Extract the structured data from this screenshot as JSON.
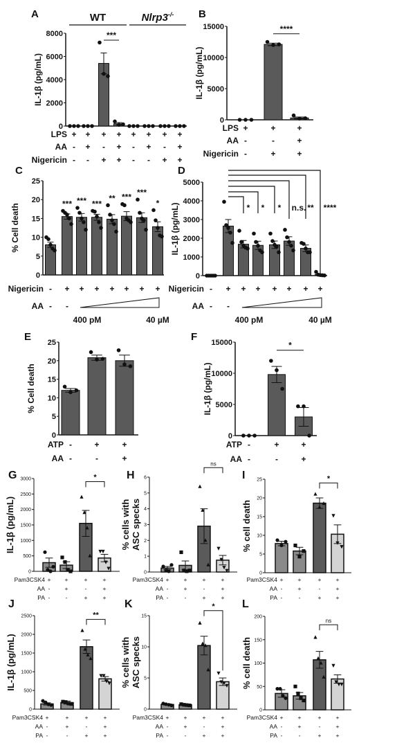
{
  "chart_data": [
    {
      "id": "A",
      "type": "bar",
      "letter": "A",
      "ylabel": "IL-1β (pg/mL)",
      "ylim": [
        0,
        8000
      ],
      "yticks": [
        0,
        2000,
        4000,
        6000,
        8000
      ],
      "groups": [
        {
          "label": "WT",
          "italic": false,
          "sup": ""
        },
        {
          "label": "Nlrp3",
          "italic": true,
          "sup": "-/-"
        }
      ],
      "rows": [
        {
          "label": "LPS",
          "values": [
            "+",
            "+",
            "+",
            "+",
            "+",
            "+",
            "+",
            "+"
          ]
        },
        {
          "label": "AA",
          "values": [
            "-",
            "+",
            "-",
            "+",
            "-",
            "+",
            "-",
            "+"
          ]
        },
        {
          "label": "Nigericin",
          "values": [
            "-",
            "-",
            "+",
            "+",
            "-",
            "-",
            "+",
            "+"
          ]
        }
      ],
      "values": [
        0,
        0,
        5400,
        200,
        0,
        0,
        0,
        0
      ],
      "errors": [
        0,
        0,
        900,
        100,
        0,
        0,
        0,
        0
      ],
      "points": [
        [
          0,
          0,
          0
        ],
        [
          0,
          0,
          0
        ],
        [
          7200,
          4500,
          4300
        ],
        [
          400,
          100,
          150
        ],
        [
          0,
          0,
          0
        ],
        [
          0,
          0,
          0
        ],
        [
          0,
          0,
          0
        ],
        [
          0,
          0,
          0
        ]
      ],
      "comparisons": [
        {
          "from": 2,
          "to": 3,
          "label": "***",
          "at": 7400
        }
      ]
    },
    {
      "id": "B",
      "type": "bar",
      "letter": "B",
      "ylabel": "IL-1β (pg/mL)",
      "ylim": [
        0,
        15000
      ],
      "yticks": [
        0,
        5000,
        10000,
        15000
      ],
      "rows": [
        {
          "label": "LPS",
          "values": [
            "+",
            "+",
            "+"
          ]
        },
        {
          "label": "AA",
          "values": [
            "-",
            "-",
            "+"
          ]
        },
        {
          "label": "Nigericin",
          "values": [
            "-",
            "+",
            "+"
          ]
        }
      ],
      "values": [
        0,
        12100,
        300
      ],
      "errors": [
        0,
        200,
        150
      ],
      "points": [
        [
          0,
          0,
          0
        ],
        [
          12500,
          12000,
          12100
        ],
        [
          700,
          200,
          250
        ]
      ],
      "comparisons": [
        {
          "from": 1,
          "to": 2,
          "label": "****",
          "at": 13800
        }
      ]
    },
    {
      "id": "C",
      "type": "bar",
      "letter": "C",
      "ylabel": "% Cell death",
      "ylim": [
        0,
        25
      ],
      "yticks": [
        0,
        5,
        10,
        15,
        20,
        25
      ],
      "rows": [
        {
          "label": "Nigericin",
          "values": [
            "-",
            "+",
            "+",
            "+",
            "+",
            "+",
            "+",
            "+"
          ]
        },
        {
          "label": "AA",
          "values": [
            "-",
            "-",
            "",
            "",
            "",
            "",
            "",
            ""
          ]
        }
      ],
      "ramp": {
        "low": "400 pM",
        "high": "40 µM"
      },
      "values": [
        8,
        15.5,
        15.3,
        15.3,
        14.8,
        15.6,
        15.2,
        12.8
      ],
      "errors": [
        0.7,
        0.7,
        1.0,
        0.8,
        1.2,
        1.2,
        1.3,
        1.3
      ],
      "points": [
        [
          10,
          9.5,
          8,
          7,
          6.5
        ],
        [
          17,
          16.5,
          16,
          15,
          13.5
        ],
        [
          17.8,
          16.5,
          15,
          14,
          12
        ],
        [
          17,
          16.8,
          15.5,
          14,
          12.5
        ],
        [
          18.5,
          16,
          14.5,
          13.5,
          11.5
        ],
        [
          18.8,
          18.5,
          15,
          14.5,
          14
        ],
        [
          20,
          16.5,
          15,
          14.5,
          12
        ],
        [
          17.2,
          14.5,
          12.5,
          10.5,
          10.2
        ]
      ],
      "bar_sig": [
        "",
        "***",
        "***",
        "***",
        "**",
        "***",
        "***",
        "*"
      ]
    },
    {
      "id": "D",
      "type": "bar",
      "letter": "D",
      "ylabel": "IL-1β (pg/mL)",
      "ylim": [
        0,
        5000
      ],
      "yticks": [
        0,
        1000,
        2000,
        3000,
        4000,
        5000
      ],
      "rows": [
        {
          "label": "Nigericin",
          "values": [
            "-",
            "+",
            "+",
            "+",
            "+",
            "+",
            "+",
            "+"
          ]
        },
        {
          "label": "AA",
          "values": [
            "-",
            "-",
            "",
            "",
            "",
            "",
            "",
            ""
          ]
        }
      ],
      "ramp": {
        "low": "400 pM",
        "high": "40 µM"
      },
      "values": [
        0,
        2650,
        1680,
        1620,
        1650,
        1850,
        1460,
        60
      ],
      "errors": [
        0,
        350,
        200,
        220,
        200,
        230,
        180,
        30
      ],
      "points": [
        [
          0,
          0,
          0,
          0,
          0
        ],
        [
          3950,
          2700,
          2550,
          2300,
          1750
        ],
        [
          2400,
          1800,
          1600,
          1500,
          1450
        ],
        [
          2250,
          1800,
          1600,
          1350,
          1250
        ],
        [
          2250,
          1850,
          1650,
          1550,
          1250
        ],
        [
          2450,
          2050,
          1800,
          1600,
          1350
        ],
        [
          1750,
          1700,
          1450,
          1250,
          1250
        ],
        [
          200,
          50,
          30,
          20,
          10
        ]
      ],
      "comparisons": [
        {
          "from": 1,
          "to": 2,
          "label": "*"
        },
        {
          "from": 1,
          "to": 3,
          "label": "*"
        },
        {
          "from": 1,
          "to": 4,
          "label": "*"
        },
        {
          "from": 1,
          "to": 5,
          "label": "n.s."
        },
        {
          "from": 1,
          "to": 6,
          "label": "**"
        },
        {
          "from": 1,
          "to": 7,
          "label": "****"
        }
      ]
    },
    {
      "id": "E",
      "type": "bar",
      "letter": "E",
      "ylabel": "% Cell death",
      "ylim": [
        0,
        25
      ],
      "yticks": [
        0,
        5,
        10,
        15,
        20,
        25
      ],
      "rows": [
        {
          "label": "ATP",
          "values": [
            "-",
            "+",
            "+"
          ]
        },
        {
          "label": "AA",
          "values": [
            "-",
            "-",
            "+"
          ]
        }
      ],
      "values": [
        12,
        20.8,
        20
      ],
      "errors": [
        0.5,
        0.7,
        1.5
      ],
      "points": [
        [
          13,
          11.5,
          12
        ],
        [
          22.3,
          20.3,
          20.5
        ],
        [
          22.8,
          19,
          18.5
        ]
      ]
    },
    {
      "id": "F",
      "type": "bar",
      "letter": "F",
      "ylabel": "IL-1β (pg/mL)",
      "ylim": [
        0,
        15000
      ],
      "yticks": [
        0,
        5000,
        10000,
        15000
      ],
      "rows": [
        {
          "label": "ATP",
          "values": [
            "-",
            "+",
            "+"
          ]
        },
        {
          "label": "AA",
          "values": [
            "-",
            "-",
            "+"
          ]
        }
      ],
      "values": [
        0,
        9800,
        3000
      ],
      "errors": [
        0,
        1300,
        1500
      ],
      "points": [
        [
          0,
          0,
          0
        ],
        [
          12000,
          10500,
          7500
        ],
        [
          4700,
          4700,
          0
        ]
      ],
      "comparisons": [
        {
          "from": 1,
          "to": 2,
          "label": "*",
          "at": 13700
        }
      ]
    },
    {
      "id": "G",
      "type": "bar",
      "letter": "G",
      "ylabel": "IL-1β (pg/mL)",
      "ylim": [
        0,
        3000
      ],
      "yticks": [
        0,
        500,
        1000,
        1500,
        2000,
        2500,
        3000
      ],
      "rows": [
        {
          "label": "Pam3CSK4",
          "values": [
            "+",
            "+",
            "+",
            "+"
          ]
        },
        {
          "label": "AA",
          "values": [
            "-",
            "+",
            "-",
            "+"
          ]
        },
        {
          "label": "PA",
          "values": [
            "-",
            "-",
            "+",
            "+"
          ]
        }
      ],
      "values": [
        280,
        200,
        1550,
        430
      ],
      "errors": [
        150,
        110,
        420,
        120
      ],
      "points": [
        [
          620,
          50,
          0,
          150
        ],
        [
          450,
          300,
          50,
          0
        ],
        [
          2400,
          1900,
          1400,
          500
        ],
        [
          650,
          650,
          300,
          100
        ]
      ],
      "comparisons": [
        {
          "from": 2,
          "to": 3,
          "label": "*",
          "at": 2900,
          "bracket": true
        }
      ]
    },
    {
      "id": "H",
      "type": "bar",
      "letter": "H",
      "ylabel": "% cells with",
      "ylabel2": "ASC specks",
      "ylim": [
        0,
        6
      ],
      "yticks": [
        0,
        1,
        2,
        3,
        4,
        5,
        6
      ],
      "rows": [
        {
          "label": "Pam3CSK4",
          "values": [
            "+",
            "+",
            "+",
            "+"
          ]
        },
        {
          "label": "AA",
          "values": [
            "-",
            "+",
            "-",
            "+"
          ]
        },
        {
          "label": "PA",
          "values": [
            "-",
            "-",
            "+",
            "+"
          ]
        }
      ],
      "values": [
        0.25,
        0.42,
        2.9,
        0.75
      ],
      "errors": [
        0.1,
        0.28,
        1.1,
        0.3
      ],
      "points": [
        [
          0.35,
          0.1,
          0.05,
          0.45
        ],
        [
          1.25,
          0.1,
          0.05,
          0.1
        ],
        [
          5.4,
          3.9,
          2.0,
          0.45
        ],
        [
          1.5,
          0.8,
          0.3,
          0.1
        ]
      ],
      "comparisons": [
        {
          "from": 2,
          "to": 3,
          "label": "ns",
          "at": 6.6,
          "bracket": true
        }
      ]
    },
    {
      "id": "I",
      "type": "bar",
      "letter": "I",
      "ylabel": "% cell death",
      "ylim": [
        0,
        25
      ],
      "yticks": [
        0,
        5,
        10,
        15,
        20,
        25
      ],
      "rows": [
        {
          "label": "Pam3CSK4",
          "values": [
            "+",
            "+",
            "+",
            "+"
          ]
        },
        {
          "label": "AA",
          "values": [
            "-",
            "+",
            "-",
            "+"
          ]
        },
        {
          "label": "PA",
          "values": [
            "-",
            "-",
            "+",
            "+"
          ]
        }
      ],
      "values": [
        7.8,
        5.8,
        18.6,
        10.3
      ],
      "errors": [
        0.6,
        1.0,
        1.4,
        2.5
      ],
      "points": [
        [
          8.7,
          7.3,
          8.3
        ],
        [
          7.3,
          4.3,
          5.8
        ],
        [
          21,
          17.5,
          18.5
        ],
        [
          15.3,
          8,
          7
        ]
      ],
      "comparisons": [
        {
          "from": 2,
          "to": 3,
          "label": "*",
          "at": 24,
          "bracket": true
        }
      ]
    },
    {
      "id": "J",
      "type": "bar",
      "letter": "J",
      "ylabel": "IL-1β (pg/mL)",
      "ylim": [
        0,
        2500
      ],
      "yticks": [
        0,
        500,
        1000,
        1500,
        2000,
        2500
      ],
      "rows": [
        {
          "label": "Pam3CSK4",
          "values": [
            "+",
            "+",
            "+",
            "+"
          ]
        },
        {
          "label": "AA",
          "values": [
            "-",
            "+",
            "-",
            "+"
          ]
        },
        {
          "label": "PA",
          "values": [
            "-",
            "-",
            "+",
            "+"
          ]
        }
      ],
      "values": [
        140,
        175,
        1670,
        810
      ],
      "errors": [
        30,
        40,
        180,
        60
      ],
      "points": [
        [
          220,
          180,
          130,
          110
        ],
        [
          200,
          190,
          150,
          140
        ],
        [
          2100,
          1600,
          1450,
          1350
        ],
        [
          900,
          900,
          750,
          700
        ]
      ],
      "comparisons": [
        {
          "from": 2,
          "to": 3,
          "label": "**",
          "at": 2400,
          "bracket": true
        }
      ]
    },
    {
      "id": "K",
      "type": "bar",
      "letter": "K",
      "ylabel": "% cells with",
      "ylabel2": "ASC specks",
      "ylim": [
        0,
        15
      ],
      "yticks": [
        0,
        5,
        10,
        15
      ],
      "rows": [
        {
          "label": "Pam3CSK4",
          "values": [
            "+",
            "+",
            "+",
            "+"
          ]
        },
        {
          "label": "AA",
          "values": [
            "-",
            "+",
            "-",
            "+"
          ]
        },
        {
          "label": "PA",
          "values": [
            "-",
            "-",
            "+",
            "+"
          ]
        }
      ],
      "values": [
        0.75,
        0.7,
        10.2,
        4.4
      ],
      "errors": [
        0.1,
        0.1,
        1.5,
        0.6
      ],
      "points": [
        [
          0.9,
          0.8,
          0.7,
          0.6
        ],
        [
          0.8,
          0.7,
          0.65,
          0.6
        ],
        [
          13.8,
          10.5,
          10.2,
          6.3
        ],
        [
          5.8,
          4.4,
          4.2,
          3.8
        ]
      ],
      "comparisons": [
        {
          "from": 2,
          "to": 3,
          "label": "*",
          "at": 15.8,
          "bracket": true
        }
      ]
    },
    {
      "id": "L",
      "type": "bar",
      "letter": "L",
      "ylabel": "% cell death",
      "ylim": [
        0,
        200
      ],
      "yticks": [
        0,
        50,
        100,
        150,
        200
      ],
      "rows": [
        {
          "label": "Pam3CSK4",
          "values": [
            "+",
            "+",
            "+",
            "+"
          ]
        },
        {
          "label": "AA",
          "values": [
            "-",
            "+",
            "-",
            "+"
          ]
        },
        {
          "label": "PA",
          "values": [
            "-",
            "-",
            "+",
            "+"
          ]
        }
      ],
      "values": [
        35,
        30,
        107,
        66
      ],
      "errors": [
        8,
        7,
        18,
        9
      ],
      "points": [
        [
          45,
          45,
          30,
          25
        ],
        [
          50,
          35,
          25,
          20
        ],
        [
          155,
          110,
          100,
          70
        ],
        [
          95,
          60,
          55,
          55
        ]
      ],
      "comparisons": [
        {
          "from": 2,
          "to": 3,
          "label": "ns",
          "at": 182,
          "bracket": true
        }
      ]
    }
  ],
  "colors": {
    "bar_dark": "#5a5a5a",
    "bar_mid": "#8a8a8a",
    "bar_light": "#d4d4d4",
    "ink": "#111111"
  }
}
